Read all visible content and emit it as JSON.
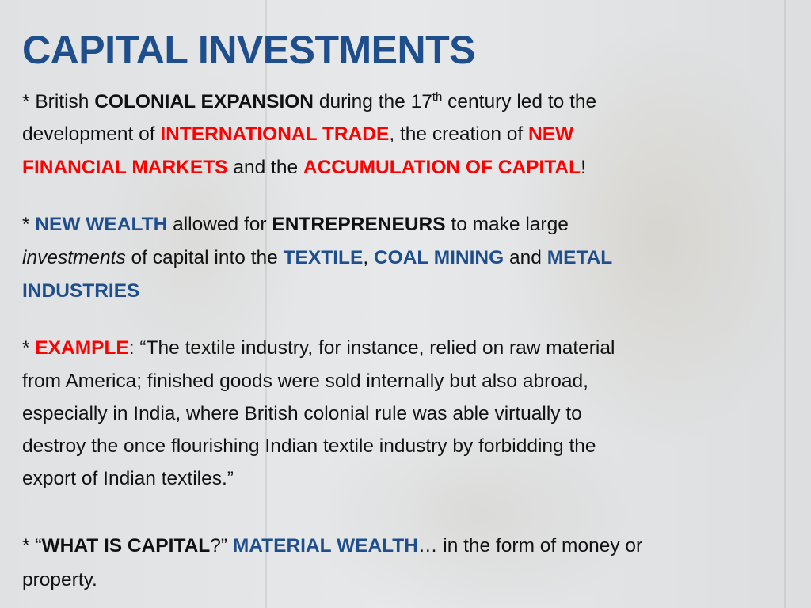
{
  "colors": {
    "title": "#1f4e8c",
    "red_emphasis": "#ff0000",
    "blue_emphasis": "#1f4e8c",
    "text": "#111111"
  },
  "slide": {
    "title": "CAPITAL INVESTMENTS",
    "lines": [
      [
        [
          "n",
          "* British "
        ],
        [
          "b",
          "COLONIAL EXPANSION"
        ],
        [
          "n",
          " during the 17"
        ],
        [
          "sup",
          "th"
        ],
        [
          "n",
          " century led to the"
        ]
      ],
      [
        [
          "n",
          "development of "
        ],
        [
          "r",
          "INTERNATIONAL TRADE"
        ],
        [
          "n",
          ", the creation of "
        ],
        [
          "r",
          "NEW"
        ]
      ],
      [
        [
          "r",
          "FINANCIAL MARKETS"
        ],
        [
          "n",
          " and the "
        ],
        [
          "r",
          "ACCUMULATION OF CAPITAL"
        ],
        [
          "n",
          "!"
        ]
      ],
      [
        [
          "n",
          "* "
        ],
        [
          "u",
          "NEW WEALTH"
        ],
        [
          "n",
          " allowed for "
        ],
        [
          "b",
          "ENTREPRENEURS"
        ],
        [
          "n",
          " to make large"
        ]
      ],
      [
        [
          "i",
          "investments"
        ],
        [
          "n",
          " of capital into the "
        ],
        [
          "u",
          "TEXTILE"
        ],
        [
          "n",
          ", "
        ],
        [
          "u",
          "COAL MINING"
        ],
        [
          "n",
          " and "
        ],
        [
          "u",
          "METAL"
        ]
      ],
      [
        [
          "u",
          "INDUSTRIES"
        ]
      ],
      [
        [
          "n",
          "* "
        ],
        [
          "r",
          "EXAMPLE"
        ],
        [
          "n",
          ":  “The textile industry, for instance, relied on raw material"
        ]
      ],
      [
        [
          "n",
          "from America; finished goods were sold internally but also abroad,"
        ]
      ],
      [
        [
          "n",
          "especially in India, where British colonial rule was able virtually to"
        ]
      ],
      [
        [
          "n",
          "destroy the once flourishing Indian textile industry by forbidding the"
        ]
      ],
      [
        [
          "n",
          "export of Indian textiles.”"
        ]
      ],
      [
        [
          "n",
          "* “"
        ],
        [
          "b",
          "WHAT IS CAPITAL"
        ],
        [
          "n",
          "?” "
        ],
        [
          "u",
          "MATERIAL WEALTH"
        ],
        [
          "n",
          "… in the form of money or"
        ]
      ],
      [
        [
          "n",
          "property."
        ]
      ]
    ]
  }
}
